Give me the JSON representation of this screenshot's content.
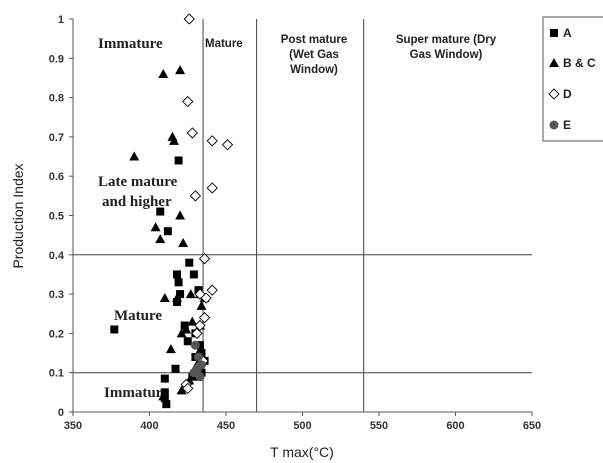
{
  "chart_data": {
    "type": "scatter",
    "xlabel": "T max(°C)",
    "ylabel": "Production Index",
    "xlim": [
      350,
      650
    ],
    "ylim": [
      0,
      1
    ],
    "x_ticks": [
      "350",
      "400",
      "450",
      "500",
      "550",
      "600",
      "650"
    ],
    "y_ticks": [
      "0",
      "0.1",
      "0.2",
      "0.3",
      "0.4",
      "0.5",
      "0.6",
      "0.7",
      "0.8",
      "0.9",
      "1"
    ],
    "vertical_boundaries": [
      435,
      470,
      540
    ],
    "horizontal_boundaries": [
      0.1,
      0.4
    ],
    "zone_labels": {
      "immature": "Immature",
      "mature": "Mature",
      "post_mature": [
        "Post mature",
        "(Wet Gas",
        "Window)"
      ],
      "super_mature": [
        "Super mature (Dry",
        "Gas Window)"
      ]
    },
    "region_labels": {
      "late_mature": [
        "Late  mature",
        "and  higher"
      ],
      "mature": "Mature",
      "immature": "Immatur"
    },
    "legend_position": "right",
    "series": [
      {
        "name": "A",
        "marker": "square",
        "color": "#000000",
        "points": [
          [
            377,
            0.21
          ],
          [
            407,
            0.51
          ],
          [
            412,
            0.46
          ],
          [
            419,
            0.64
          ],
          [
            418,
            0.35
          ],
          [
            419,
            0.33
          ],
          [
            420,
            0.3
          ],
          [
            418,
            0.28
          ],
          [
            426,
            0.38
          ],
          [
            429,
            0.35
          ],
          [
            432,
            0.31
          ],
          [
            423,
            0.22
          ],
          [
            430,
            0.2
          ],
          [
            425,
            0.18
          ],
          [
            433,
            0.17
          ],
          [
            434,
            0.15
          ],
          [
            430,
            0.14
          ],
          [
            436,
            0.13
          ],
          [
            433,
            0.12
          ],
          [
            432,
            0.1
          ],
          [
            428,
            0.09
          ],
          [
            417,
            0.11
          ],
          [
            410,
            0.085
          ],
          [
            410,
            0.05
          ],
          [
            410,
            0.035
          ],
          [
            411,
            0.02
          ],
          [
            434,
            0.1
          ]
        ]
      },
      {
        "name": "B & C",
        "marker": "triangle",
        "color": "#000000",
        "points": [
          [
            409,
            0.86
          ],
          [
            420,
            0.87
          ],
          [
            415,
            0.7
          ],
          [
            416,
            0.69
          ],
          [
            390,
            0.65
          ],
          [
            420,
            0.5
          ],
          [
            404,
            0.47
          ],
          [
            407,
            0.44
          ],
          [
            422,
            0.43
          ],
          [
            427,
            0.3
          ],
          [
            433,
            0.3
          ],
          [
            410,
            0.29
          ],
          [
            418,
            0.29
          ],
          [
            436,
            0.29
          ],
          [
            434,
            0.27
          ],
          [
            428,
            0.23
          ],
          [
            424,
            0.21
          ],
          [
            433,
            0.22
          ],
          [
            421,
            0.2
          ],
          [
            414,
            0.16
          ],
          [
            432,
            0.15
          ],
          [
            434,
            0.13
          ],
          [
            431,
            0.12
          ],
          [
            426,
            0.08
          ],
          [
            421,
            0.055
          ],
          [
            409,
            0.04
          ],
          [
            432,
            0.09
          ]
        ]
      },
      {
        "name": "D",
        "marker": "diamond",
        "color": "#000000",
        "points": [
          [
            426,
            1.0
          ],
          [
            425,
            0.79
          ],
          [
            428,
            0.71
          ],
          [
            441,
            0.69
          ],
          [
            451,
            0.68
          ],
          [
            441,
            0.57
          ],
          [
            430,
            0.55
          ],
          [
            436,
            0.39
          ],
          [
            441,
            0.31
          ],
          [
            433,
            0.3
          ],
          [
            437,
            0.29
          ],
          [
            436,
            0.24
          ],
          [
            433,
            0.22
          ],
          [
            431,
            0.2
          ],
          [
            435,
            0.13
          ],
          [
            424,
            0.07
          ],
          [
            425,
            0.06
          ],
          [
            433,
            0.12
          ]
        ]
      },
      {
        "name": "E",
        "marker": "circle",
        "color": "#555555",
        "points": [
          [
            430,
            0.17
          ],
          [
            432,
            0.14
          ],
          [
            434,
            0.12
          ],
          [
            431,
            0.11
          ],
          [
            429,
            0.1
          ],
          [
            431,
            0.105
          ],
          [
            433,
            0.09
          ]
        ]
      }
    ]
  }
}
